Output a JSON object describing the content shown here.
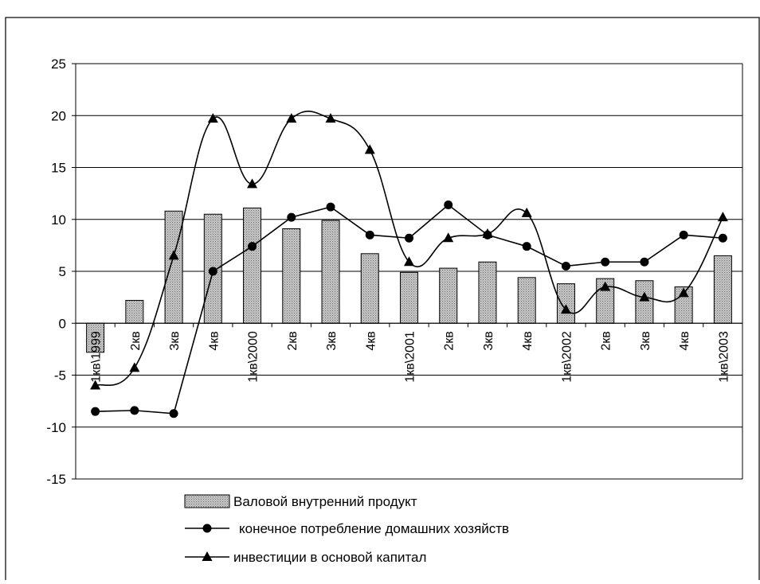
{
  "chart_data": {
    "type": "bar",
    "title": "",
    "xlabel": "",
    "ylabel": "",
    "categories": [
      "1кв\\1999",
      "2кв",
      "3кв",
      "4кв",
      "1кв\\2000",
      "2кв",
      "3кв",
      "4кв",
      "1кв\\2001",
      "2кв",
      "3кв",
      "4кв",
      "1кв\\2002",
      "2кв",
      "3кв",
      "4кв",
      "1кв\\2003"
    ],
    "ylim": [
      -15,
      25
    ],
    "yticks": [
      25,
      20,
      15,
      10,
      5,
      0,
      -5,
      -10,
      -15
    ],
    "grid": true,
    "legend_position": "bottom",
    "series": [
      {
        "name": "Валовой внутренний продукт",
        "kind": "bar",
        "pattern": "dotted",
        "values": [
          -2.8,
          2.2,
          10.8,
          10.5,
          11.1,
          9.1,
          9.9,
          6.7,
          4.9,
          5.3,
          5.9,
          4.4,
          3.8,
          4.3,
          4.1,
          3.5,
          6.5
        ]
      },
      {
        "name": "конечное потребление  домашних хозяйств",
        "kind": "line",
        "marker": "circle",
        "smooth": false,
        "values": [
          -8.5,
          -8.4,
          -8.7,
          5.0,
          7.4,
          10.2,
          11.2,
          8.5,
          8.2,
          11.4,
          8.5,
          7.4,
          5.5,
          5.9,
          5.9,
          8.5,
          8.2
        ]
      },
      {
        "name": "инвестиции в основой капитал",
        "kind": "line",
        "marker": "triangle",
        "smooth": true,
        "values": [
          -6.0,
          -4.3,
          6.5,
          19.7,
          13.4,
          19.7,
          19.7,
          16.7,
          5.9,
          8.2,
          8.6,
          10.6,
          1.3,
          3.5,
          2.5,
          2.9,
          10.2
        ]
      }
    ],
    "colors": {
      "line": "#000000",
      "bar_fill": "#c8c8c8",
      "bar_dots": "#707070",
      "grid": "#000000"
    }
  }
}
